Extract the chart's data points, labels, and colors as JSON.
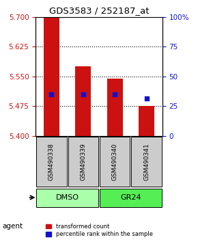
{
  "title": "GDS3583 / 252187_at",
  "samples": [
    "GSM490338",
    "GSM490339",
    "GSM490340",
    "GSM490341"
  ],
  "bar_bottoms": [
    5.4,
    5.4,
    5.4,
    5.4
  ],
  "bar_tops": [
    5.7,
    5.575,
    5.545,
    5.475
  ],
  "blue_markers": [
    5.505,
    5.505,
    5.505,
    5.495
  ],
  "bar_color": "#cc1111",
  "blue_color": "#1111cc",
  "ylim_left": [
    5.4,
    5.7
  ],
  "ylim_right": [
    0,
    100
  ],
  "left_ticks": [
    5.4,
    5.475,
    5.55,
    5.625,
    5.7
  ],
  "right_ticks": [
    0,
    25,
    50,
    75,
    100
  ],
  "right_tick_labels": [
    "0",
    "25",
    "50",
    "75",
    "100%"
  ],
  "agent_labels": [
    [
      "DMSO",
      0,
      2
    ],
    [
      "GR24",
      2,
      4
    ]
  ],
  "agent_colors": [
    "#aaffaa",
    "#55ee55"
  ],
  "legend_items": [
    "transformed count",
    "percentile rank within the sample"
  ],
  "background_color": "#ffffff",
  "plot_bg": "#ffffff",
  "grid_color": "#000000",
  "sample_box_color": "#cccccc"
}
